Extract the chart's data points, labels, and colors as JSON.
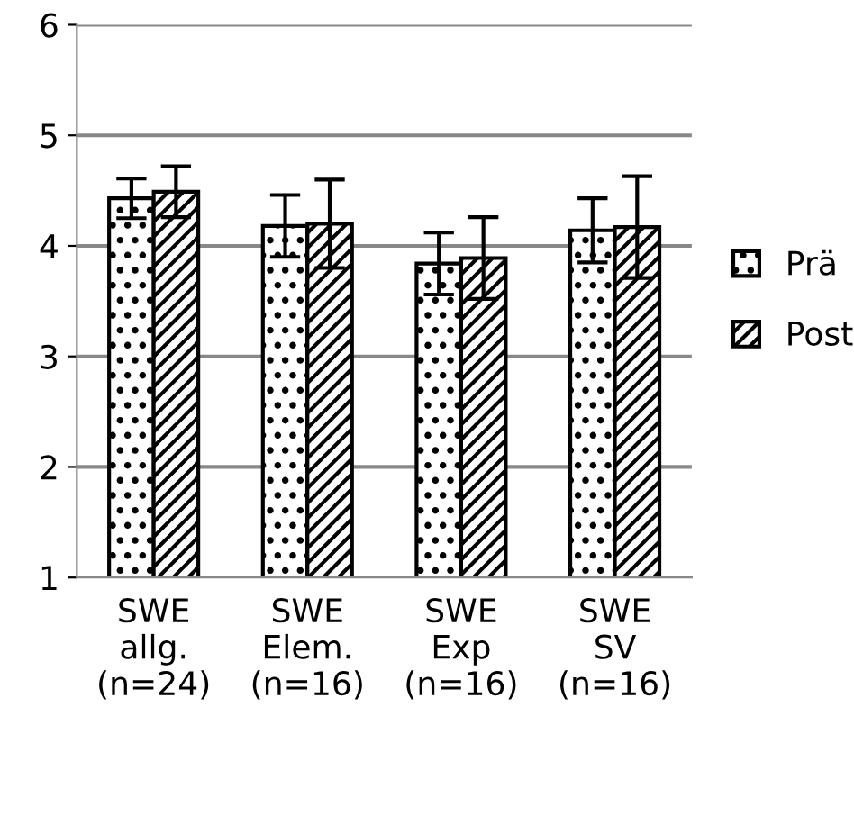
{
  "chart_data": {
    "type": "bar",
    "categories": [
      "SWE\nallg.\n(n=24)",
      "SWE\nElem.\n(n=16)",
      "SWE\nExp\n(n=16)",
      "SWE\nSV\n(n=16)"
    ],
    "series": [
      {
        "name": "Prä",
        "color": "#000000",
        "values": [
          4.43,
          4.18,
          3.84,
          4.14
        ],
        "errors": [
          0.18,
          0.28,
          0.28,
          0.29
        ]
      },
      {
        "name": "Post",
        "color": "#000000",
        "values": [
          4.49,
          4.2,
          3.89,
          4.17
        ],
        "errors": [
          0.23,
          0.4,
          0.37,
          0.46
        ]
      }
    ],
    "ylim": [
      1,
      6
    ],
    "yticks": [
      1,
      2,
      3,
      4,
      5,
      6
    ],
    "grid": "y",
    "legend": "right"
  }
}
